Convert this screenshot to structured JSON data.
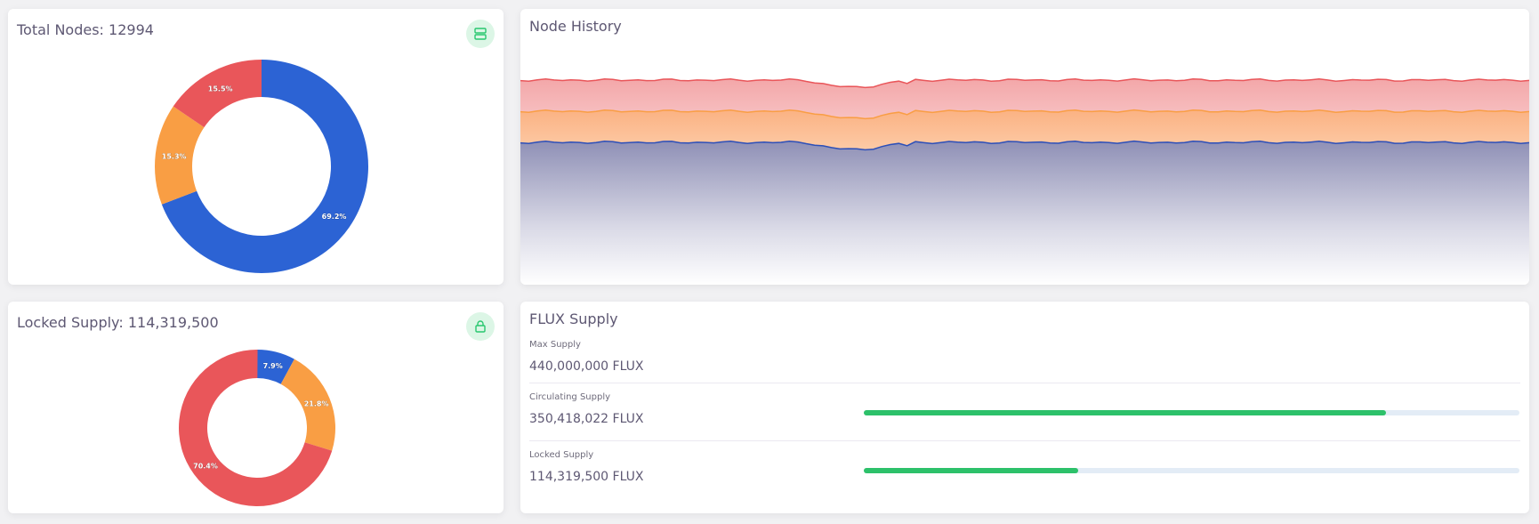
{
  "total_nodes": {
    "label": "Total Nodes:",
    "value": "12994",
    "icon": "server-icon",
    "donut": [
      {
        "label": "69.2%",
        "fraction": 0.692,
        "color": "#2c63d4"
      },
      {
        "label": "15.3%",
        "fraction": 0.153,
        "color": "#f99e44"
      },
      {
        "label": "15.5%",
        "fraction": 0.155,
        "color": "#e9565a"
      }
    ]
  },
  "node_history": {
    "title": "Node History",
    "colors": {
      "top": "#e9565a",
      "middle": "#f99e44",
      "bottom": "#2c63d4",
      "bottom_fill": "#3a3d8f"
    }
  },
  "locked_supply": {
    "label": "Locked Supply:",
    "value": "114,319,500",
    "icon": "lock-icon",
    "donut": [
      {
        "label": "7.9%",
        "fraction": 0.079,
        "color": "#2c63d4"
      },
      {
        "label": "21.8%",
        "fraction": 0.218,
        "color": "#f99e44"
      },
      {
        "label": "70.4%",
        "fraction": 0.704,
        "color": "#e9565a"
      }
    ]
  },
  "flux_supply": {
    "title": "FLUX Supply",
    "max": {
      "label": "Max Supply",
      "value": "440,000,000 FLUX"
    },
    "circulating": {
      "label": "Circulating Supply",
      "value": "350,418,022 FLUX",
      "progress": 0.796
    },
    "locked": {
      "label": "Locked Supply",
      "value": "114,319,500 FLUX",
      "progress": 0.327
    },
    "bar_color": "#2dc16a"
  }
}
